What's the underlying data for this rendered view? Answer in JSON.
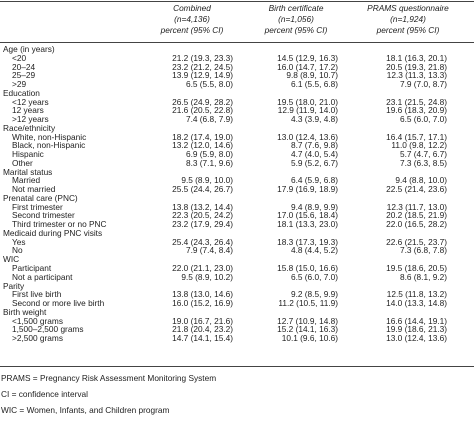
{
  "header": {
    "columns": [
      {
        "name": "Combined",
        "n": "(n=4,136)",
        "unit": "percent (95% CI)"
      },
      {
        "name": "Birth certificate",
        "n": "(n=1,056)",
        "unit": "percent (95% CI)"
      },
      {
        "name": "PRAMS questionnaire",
        "n": "(n=1,924)",
        "unit": "percent (95% CI)"
      }
    ]
  },
  "table": {
    "sections": [
      {
        "title": "Age (in years)",
        "rows": [
          {
            "label": "<20",
            "values": [
              "21.2 (19.3, 23.3)",
              "14.5 (12.9, 16.3)",
              "18.1 (16.3, 20.1)"
            ]
          },
          {
            "label": "20–24",
            "values": [
              "23.2 (21.2, 24.5)",
              "16.0 (14.7, 17.2)",
              "20.5 (19.3, 21.8)"
            ]
          },
          {
            "label": "25–29",
            "values": [
              "13.9 (12.9, 14.9)",
              "9.8 (8.9, 10.7)",
              "12.3 (11.3, 13.3)"
            ]
          },
          {
            "label": ">29",
            "values": [
              "6.5 (5.5, 8.0)",
              "6.1 (5.5, 6.8)",
              "7.9 (7.0, 8.7)"
            ]
          }
        ]
      },
      {
        "title": "Education",
        "rows": [
          {
            "label": "<12 years",
            "values": [
              "26.5 (24.9, 28.2)",
              "19.5 (18.0, 21.0)",
              "23.1 (21.5, 24.8)"
            ]
          },
          {
            "label": "12 years",
            "values": [
              "21.6 (20.5, 22.8)",
              "12.9 (11.9, 14.0)",
              "19.6 (18.3, 20.9)"
            ]
          },
          {
            "label": ">12 years",
            "values": [
              "7.4 (6.8, 7.9)",
              "4.3 (3.9, 4.8)",
              "6.5 (6.0, 7.0)"
            ]
          }
        ]
      },
      {
        "title": "Race/ethnicity",
        "rows": [
          {
            "label": "White, non-Hispanic",
            "values": [
              "18.2 (17.4, 19.0)",
              "13.0 (12.4, 13.6)",
              "16.4 (15.7, 17.1)"
            ]
          },
          {
            "label": "Black, non-Hispanic",
            "values": [
              "13.2 (12.0, 14.6)",
              "8.7 (7.6, 9.8)",
              "11.0 (9.8, 12.2)"
            ]
          },
          {
            "label": "Hispanic",
            "values": [
              "6.9 (5.9, 8.0)",
              "4.7 (4.0, 5.4)",
              "5.7 (4.7, 6.7)"
            ]
          },
          {
            "label": "Other",
            "values": [
              "8.3 (7.1, 9.6)",
              "5.9 (5.2, 6.7)",
              "7.3 (6.3, 8.5)"
            ]
          }
        ]
      },
      {
        "title": "Marital status",
        "rows": [
          {
            "label": "Married",
            "values": [
              "9.5 (8.9, 10.0)",
              "6.4 (5.9, 6.8)",
              "9.4 (8.8, 10.0)"
            ]
          },
          {
            "label": "Not married",
            "values": [
              "25.5 (24.4, 26.7)",
              "17.9 (16.9, 18.9)",
              "22.5 (21.4, 23.6)"
            ]
          }
        ]
      },
      {
        "title": "Prenatal care (PNC)",
        "rows": [
          {
            "label": "First trimester",
            "values": [
              "13.8 (13.2, 14.4)",
              "9.4 (8.9, 9.9)",
              "12.3 (11.7, 13.0)"
            ]
          },
          {
            "label": "Second trimester",
            "values": [
              "22.3 (20.5, 24.2)",
              "17.0 (15.6, 18.4)",
              "20.2 (18.5, 21.9)"
            ]
          },
          {
            "label": "Third trimester or no PNC",
            "values": [
              "23.2 (17.9, 29.4)",
              "18.1 (13.3, 23.0)",
              "22.0 (16.5, 28.2)"
            ]
          }
        ]
      },
      {
        "title": "Medicaid during PNC visits",
        "rows": [
          {
            "label": "Yes",
            "values": [
              "25.4 (24.3, 26.4)",
              "18.3 (17.3, 19.3)",
              "22.6 (21.5, 23.7)"
            ]
          },
          {
            "label": "No",
            "values": [
              "7.9 (7.4, 8.4)",
              "4.8 (4.4, 5.2)",
              "7.3 (6.8, 7.8)"
            ]
          }
        ]
      },
      {
        "title": "WIC",
        "rows": [
          {
            "label": "Participant",
            "values": [
              "22.0 (21.1, 23.0)",
              "15.8 (15.0, 16.6)",
              "19.5 (18.6, 20.5)"
            ]
          },
          {
            "label": "Not a participant",
            "values": [
              "9.5 (8.9, 10.2)",
              "6.5 (6.0, 7.0)",
              "8.6 (8.1, 9.2)"
            ]
          }
        ]
      },
      {
        "title": "Parity",
        "rows": [
          {
            "label": "First live birth",
            "values": [
              "13.8 (13.0, 14.6)",
              "9.2 (8.5, 9.9)",
              "12.5 (11.8, 13.2)"
            ]
          },
          {
            "label": "Second or more live birth",
            "values": [
              "16.0 (15.2, 16.9)",
              "11.2 (10.5, 11.9)",
              "14.0 (13.3, 14.8)"
            ]
          }
        ]
      },
      {
        "title": "Birth weight",
        "rows": [
          {
            "label": "<1,500 grams",
            "values": [
              "19.0 (16.7, 21.6)",
              "12.7 (10.9, 14.8)",
              "16.6 (14.4, 19.1)"
            ]
          },
          {
            "label": "1,500–2,500 grams",
            "values": [
              "21.8 (20.4, 23.2)",
              "15.2 (14.1, 16.3)",
              "19.9 (18.6, 21.3)"
            ]
          },
          {
            "label": ">2,500 grams",
            "values": [
              "14.7 (14.1, 15.4)",
              "10.1 (9.6, 10.6)",
              "13.0 (12.4, 13.6)"
            ]
          }
        ]
      }
    ]
  },
  "footnotes": [
    "PRAMS = Pregnancy Risk Assessment Monitoring System",
    "CI = confidence interval",
    "WIC = Women, Infants, and Children program"
  ]
}
